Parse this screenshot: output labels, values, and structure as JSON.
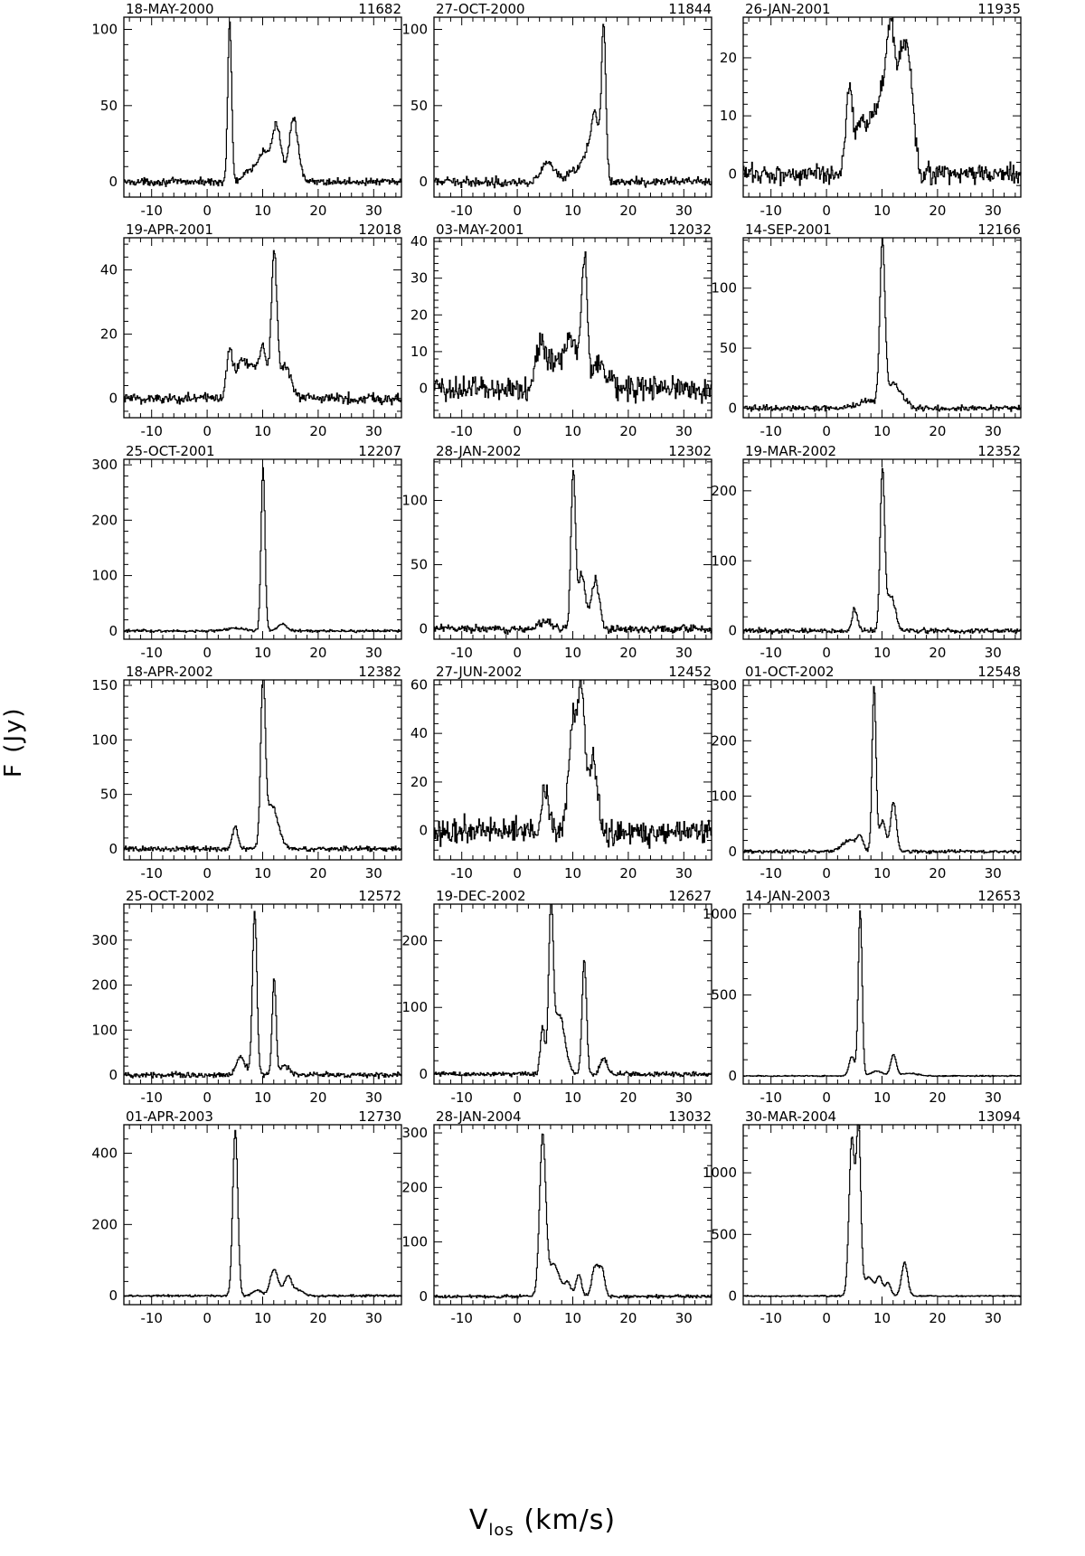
{
  "figure": {
    "ylabel": "F (Jy)",
    "xlabel_main": "V",
    "xlabel_sub": "los",
    "xlabel_unit": " (km/s)"
  },
  "chart_data": [
    {
      "type": "line",
      "title": "18-MAY-2000",
      "id": "11682",
      "xlim": [
        -15,
        35
      ],
      "ylim": [
        -10,
        108
      ],
      "xticks": [
        -10,
        0,
        10,
        20,
        30
      ],
      "yticks": [
        0,
        50,
        100
      ],
      "peaks": [
        [
          4.0,
          104,
          0.35
        ],
        [
          7.0,
          5,
          0.8
        ],
        [
          9.0,
          10,
          0.9
        ],
        [
          10.5,
          16,
          0.9
        ],
        [
          12.5,
          36,
          0.8
        ],
        [
          15.5,
          42,
          0.8
        ]
      ],
      "noise": 2.0
    },
    {
      "type": "line",
      "title": "27-OCT-2000",
      "id": "11844",
      "xlim": [
        -15,
        35
      ],
      "ylim": [
        -10,
        108
      ],
      "xticks": [
        -10,
        0,
        10,
        20,
        30
      ],
      "yticks": [
        0,
        50,
        100
      ],
      "peaks": [
        [
          5.5,
          12,
          1.2
        ],
        [
          10.0,
          6,
          1.0
        ],
        [
          12.5,
          18,
          1.0
        ],
        [
          14.0,
          40,
          0.7
        ],
        [
          15.5,
          100,
          0.4
        ]
      ],
      "noise": 2.5
    },
    {
      "type": "line",
      "title": "26-JAN-2001",
      "id": "11935",
      "xlim": [
        -15,
        35
      ],
      "ylim": [
        -4,
        27
      ],
      "xticks": [
        -10,
        0,
        10,
        20,
        30
      ],
      "yticks": [
        0,
        10,
        20
      ],
      "peaks": [
        [
          4.0,
          15,
          0.6
        ],
        [
          6.0,
          9,
          0.8
        ],
        [
          8.0,
          9,
          0.8
        ],
        [
          10.0,
          13,
          0.9
        ],
        [
          11.5,
          22,
          0.7
        ],
        [
          13.5,
          20,
          0.9
        ],
        [
          15.0,
          14,
          0.7
        ]
      ],
      "noise": 1.5
    },
    {
      "type": "line",
      "title": "19-APR-2001",
      "id": "12018",
      "xlim": [
        -15,
        35
      ],
      "ylim": [
        -6,
        50
      ],
      "xticks": [
        -10,
        0,
        10,
        20,
        30
      ],
      "yticks": [
        0,
        20,
        40
      ],
      "peaks": [
        [
          4.0,
          15,
          0.6
        ],
        [
          6.0,
          11,
          0.8
        ],
        [
          8.0,
          10,
          1.0
        ],
        [
          10.0,
          15,
          0.7
        ],
        [
          12.0,
          45,
          0.5
        ],
        [
          14.0,
          10,
          1.0
        ]
      ],
      "noise": 1.5
    },
    {
      "type": "line",
      "title": "03-MAY-2001",
      "id": "12032",
      "xlim": [
        -15,
        35
      ],
      "ylim": [
        -8,
        41
      ],
      "xticks": [
        -10,
        0,
        10,
        20,
        30
      ],
      "yticks": [
        0,
        10,
        20,
        30,
        40
      ],
      "peaks": [
        [
          4.0,
          12,
          0.8
        ],
        [
          6.5,
          7,
          1.2
        ],
        [
          9.5,
          13,
          1.2
        ],
        [
          12.0,
          33,
          0.5
        ],
        [
          14.5,
          7,
          1.5
        ]
      ],
      "noise": 3.0
    },
    {
      "type": "line",
      "title": "14-SEP-2001",
      "id": "12166",
      "xlim": [
        -15,
        35
      ],
      "ylim": [
        -8,
        142
      ],
      "xticks": [
        -10,
        0,
        10,
        20,
        30
      ],
      "yticks": [
        0,
        50,
        100
      ],
      "peaks": [
        [
          7.0,
          6,
          1.5
        ],
        [
          10.0,
          132,
          0.45
        ],
        [
          12.0,
          20,
          1.5
        ]
      ],
      "noise": 2.0
    },
    {
      "type": "line",
      "title": "25-OCT-2001",
      "id": "12207",
      "xlim": [
        -15,
        35
      ],
      "ylim": [
        -15,
        310
      ],
      "xticks": [
        -10,
        0,
        10,
        20,
        30
      ],
      "yticks": [
        0,
        100,
        200,
        300
      ],
      "peaks": [
        [
          5.0,
          5,
          1.5
        ],
        [
          10.0,
          295,
          0.35
        ],
        [
          13.5,
          12,
          0.8
        ]
      ],
      "noise": 2.0
    },
    {
      "type": "line",
      "title": "28-JAN-2002",
      "id": "12302",
      "xlim": [
        -15,
        35
      ],
      "ylim": [
        -8,
        132
      ],
      "xticks": [
        -10,
        0,
        10,
        20,
        30
      ],
      "yticks": [
        0,
        50,
        100
      ],
      "peaks": [
        [
          5.0,
          6,
          1.2
        ],
        [
          10.0,
          120,
          0.4
        ],
        [
          11.5,
          42,
          0.7
        ],
        [
          14.0,
          38,
          0.7
        ]
      ],
      "noise": 2.5
    },
    {
      "type": "line",
      "title": "19-MAR-2002",
      "id": "12352",
      "xlim": [
        -15,
        35
      ],
      "ylim": [
        -12,
        245
      ],
      "xticks": [
        -10,
        0,
        10,
        20,
        30
      ],
      "yticks": [
        0,
        100,
        200
      ],
      "peaks": [
        [
          5.0,
          30,
          0.5
        ],
        [
          10.0,
          225,
          0.4
        ],
        [
          11.5,
          50,
          0.8
        ]
      ],
      "noise": 3.0
    },
    {
      "type": "line",
      "title": "18-APR-2002",
      "id": "12382",
      "xlim": [
        -15,
        35
      ],
      "ylim": [
        -10,
        155
      ],
      "xticks": [
        -10,
        0,
        10,
        20,
        30
      ],
      "yticks": [
        0,
        50,
        100,
        150
      ],
      "peaks": [
        [
          5.0,
          20,
          0.5
        ],
        [
          10.0,
          145,
          0.4
        ],
        [
          11.5,
          40,
          1.2
        ]
      ],
      "noise": 2.0
    },
    {
      "type": "line",
      "title": "27-JUN-2002",
      "id": "12452",
      "xlim": [
        -15,
        35
      ],
      "ylim": [
        -12,
        62
      ],
      "xticks": [
        -10,
        0,
        10,
        20,
        30
      ],
      "yticks": [
        0,
        20,
        40,
        60
      ],
      "peaks": [
        [
          5.0,
          18,
          0.6
        ],
        [
          10.0,
          45,
          0.8
        ],
        [
          11.5,
          52,
          0.6
        ],
        [
          13.5,
          30,
          0.8
        ]
      ],
      "noise": 4.5
    },
    {
      "type": "line",
      "title": "01-OCT-2002",
      "id": "12548",
      "xlim": [
        -15,
        35
      ],
      "ylim": [
        -15,
        310
      ],
      "xticks": [
        -10,
        0,
        10,
        20,
        30
      ],
      "yticks": [
        0,
        100,
        200,
        300
      ],
      "peaks": [
        [
          4.0,
          20,
          1.2
        ],
        [
          6.0,
          25,
          0.6
        ],
        [
          8.5,
          295,
          0.35
        ],
        [
          10.0,
          55,
          0.6
        ],
        [
          12.0,
          90,
          0.5
        ]
      ],
      "noise": 2.5
    },
    {
      "type": "line",
      "title": "25-OCT-2002",
      "id": "12572",
      "xlim": [
        -15,
        35
      ],
      "ylim": [
        -20,
        380
      ],
      "xticks": [
        -10,
        0,
        10,
        20,
        30
      ],
      "yticks": [
        0,
        100,
        200,
        300
      ],
      "peaks": [
        [
          6.0,
          40,
          0.8
        ],
        [
          8.5,
          365,
          0.4
        ],
        [
          12.0,
          215,
          0.35
        ],
        [
          14.0,
          20,
          0.8
        ]
      ],
      "noise": 5.0
    },
    {
      "type": "line",
      "title": "19-DEC-2002",
      "id": "12627",
      "xlim": [
        -15,
        35
      ],
      "ylim": [
        -15,
        255
      ],
      "xticks": [
        -10,
        0,
        10,
        20,
        30
      ],
      "yticks": [
        0,
        100,
        200
      ],
      "peaks": [
        [
          4.5,
          70,
          0.4
        ],
        [
          6.0,
          240,
          0.4
        ],
        [
          7.5,
          90,
          1.0
        ],
        [
          12.0,
          170,
          0.4
        ],
        [
          15.5,
          25,
          0.6
        ]
      ],
      "noise": 3.0
    },
    {
      "type": "line",
      "title": "14-JAN-2003",
      "id": "12653",
      "xlim": [
        -15,
        35
      ],
      "ylim": [
        -50,
        1060
      ],
      "xticks": [
        -10,
        0,
        10,
        20,
        30
      ],
      "yticks": [
        0,
        500,
        1000
      ],
      "peaks": [
        [
          4.5,
          120,
          0.5
        ],
        [
          6.0,
          1020,
          0.35
        ],
        [
          9.0,
          30,
          1.0
        ],
        [
          12.0,
          130,
          0.5
        ],
        [
          15.0,
          15,
          1.5
        ]
      ],
      "noise": 3.0
    },
    {
      "type": "line",
      "title": "01-APR-2003",
      "id": "12730",
      "xlim": [
        -15,
        35
      ],
      "ylim": [
        -25,
        480
      ],
      "xticks": [
        -10,
        0,
        10,
        20,
        30
      ],
      "yticks": [
        0,
        200,
        400
      ],
      "peaks": [
        [
          5.0,
          465,
          0.45
        ],
        [
          9.0,
          15,
          0.8
        ],
        [
          12.0,
          75,
          0.7
        ],
        [
          14.5,
          55,
          0.7
        ],
        [
          16.5,
          15,
          0.8
        ]
      ],
      "noise": 2.5
    },
    {
      "type": "line",
      "title": "28-JAN-2004",
      "id": "13032",
      "xlim": [
        -15,
        35
      ],
      "ylim": [
        -15,
        315
      ],
      "xticks": [
        -10,
        0,
        10,
        20,
        30
      ],
      "yticks": [
        0,
        100,
        200,
        300
      ],
      "peaks": [
        [
          4.5,
          290,
          0.55
        ],
        [
          6.5,
          60,
          1.0
        ],
        [
          9.0,
          25,
          0.6
        ],
        [
          11.0,
          40,
          0.5
        ],
        [
          14.0,
          55,
          0.6
        ],
        [
          15.2,
          45,
          0.5
        ]
      ],
      "noise": 2.5
    },
    {
      "type": "line",
      "title": "30-MAR-2004",
      "id": "13094",
      "xlim": [
        -15,
        35
      ],
      "ylim": [
        -70,
        1390
      ],
      "xticks": [
        -10,
        0,
        10,
        20,
        30
      ],
      "yticks": [
        0,
        500,
        1000
      ],
      "peaks": [
        [
          4.5,
          1280,
          0.5
        ],
        [
          5.7,
          1340,
          0.4
        ],
        [
          7.5,
          150,
          1.0
        ],
        [
          9.5,
          140,
          0.5
        ],
        [
          11.0,
          110,
          0.5
        ],
        [
          14.0,
          270,
          0.55
        ]
      ],
      "noise": 5.0
    }
  ]
}
